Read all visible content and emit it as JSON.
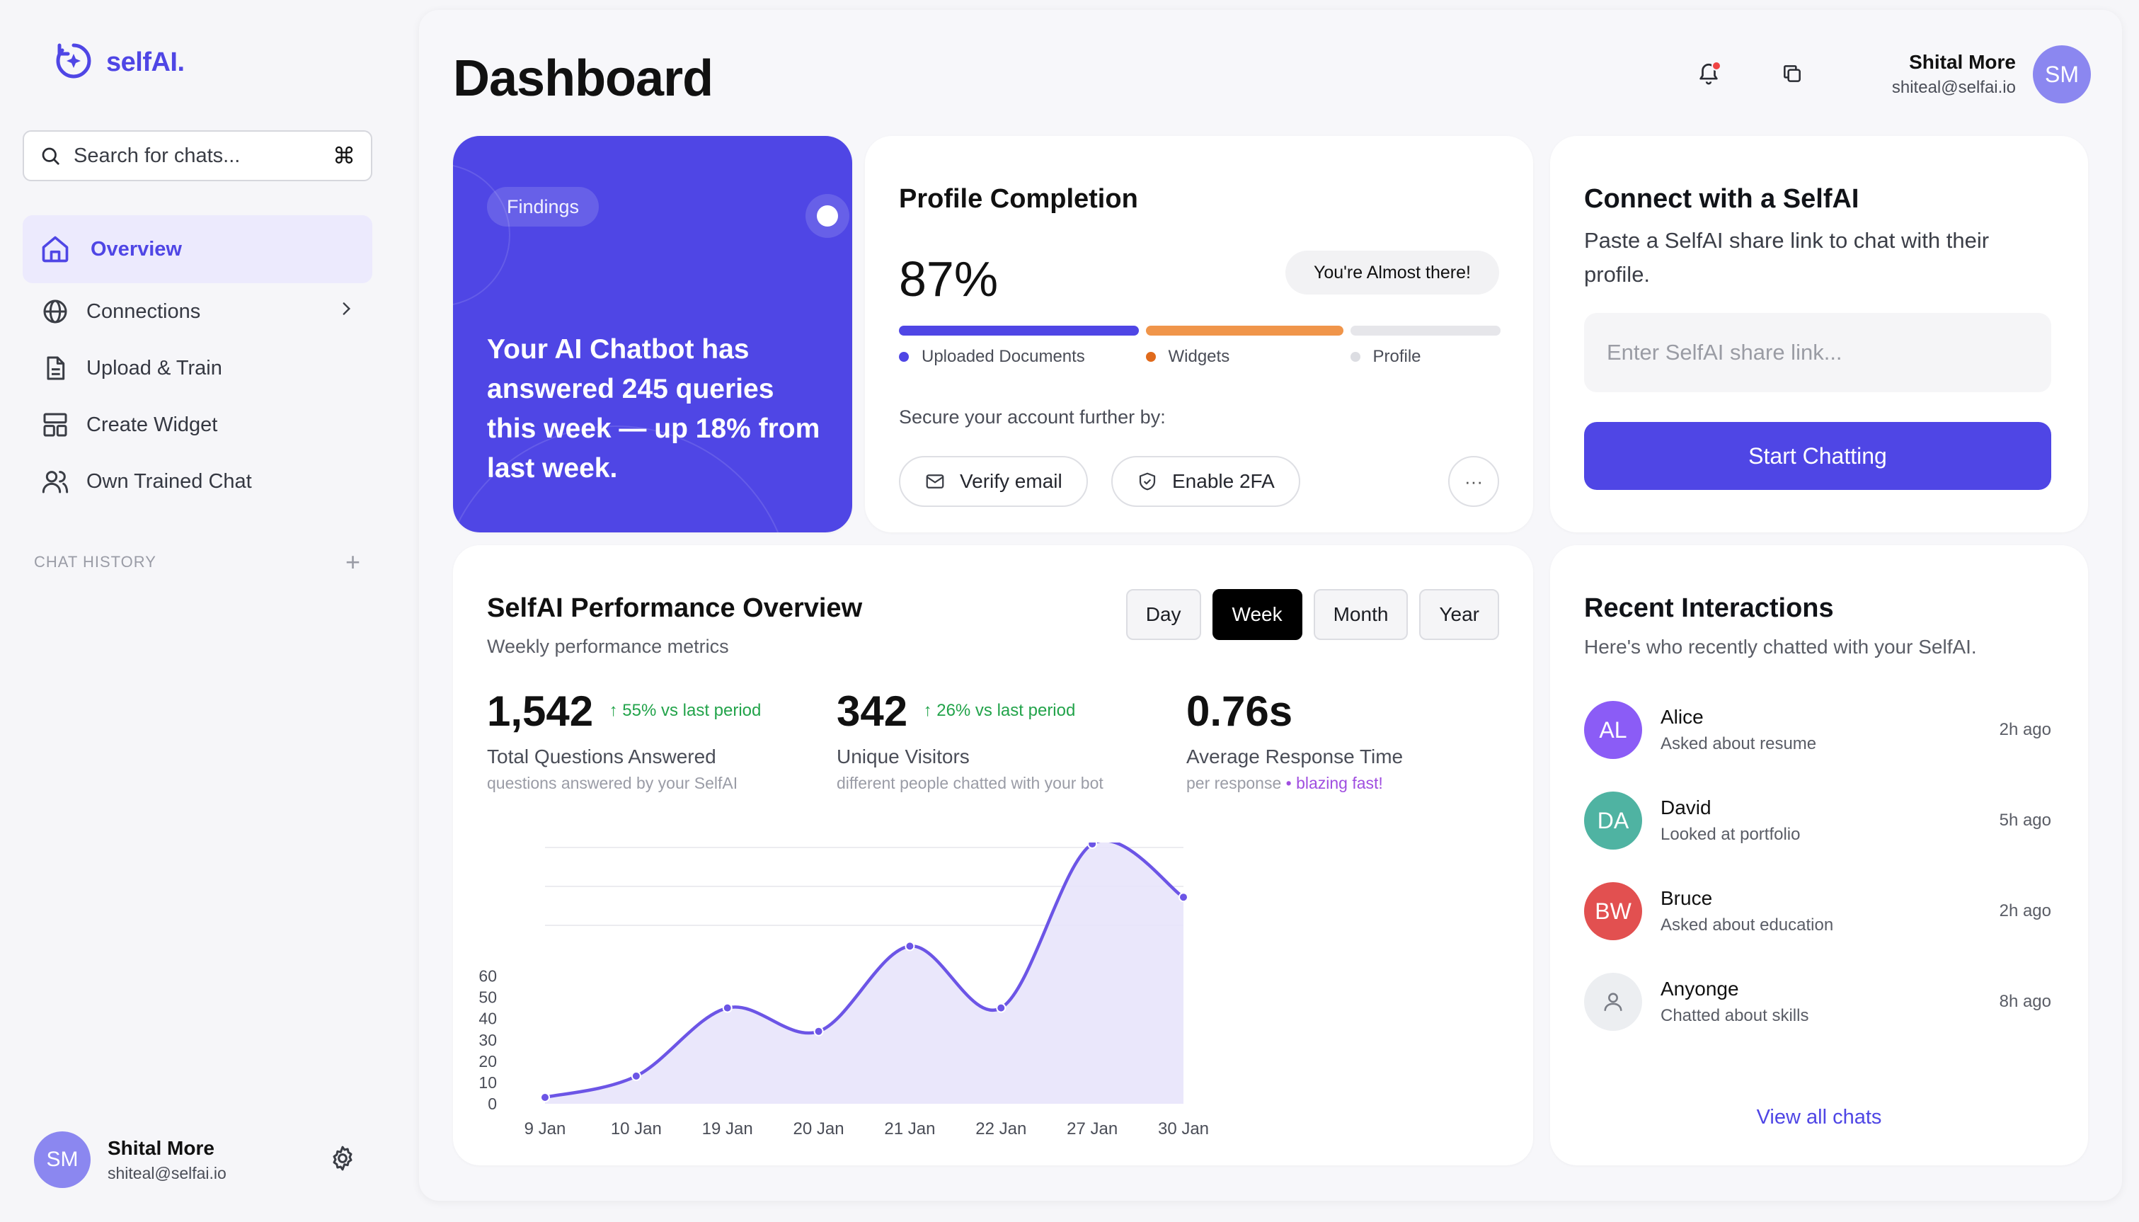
{
  "app": {
    "name": "selfAI."
  },
  "sidebar": {
    "search": {
      "placeholder": "Search for chats...",
      "shortcut": "⌘"
    },
    "items": [
      {
        "label": "Overview",
        "icon": "home-icon",
        "active": true
      },
      {
        "label": "Connections",
        "icon": "globe-icon",
        "has_submenu": true
      },
      {
        "label": "Upload & Train",
        "icon": "file-text-icon"
      },
      {
        "label": "Create Widget",
        "icon": "layout-icon"
      },
      {
        "label": "Own Trained Chat",
        "icon": "users-icon"
      }
    ],
    "history_label": "CHAT HISTORY",
    "user": {
      "initials": "SM",
      "name": "Shital More",
      "email": "shiteal@selfai.io"
    }
  },
  "header": {
    "title": "Dashboard",
    "user": {
      "initials": "SM",
      "name": "Shital More",
      "email": "shiteal@selfai.io"
    }
  },
  "findings": {
    "tag": "Findings",
    "text": "Your AI Chatbot has answered 245 queries this week — up 18% from last week."
  },
  "profile": {
    "title": "Profile Completion",
    "percent": "87%",
    "badge": "You're Almost there!",
    "segments": [
      {
        "label": "Uploaded Documents",
        "color": "#4f46e5",
        "fraction": 0.41
      },
      {
        "label": "Widgets",
        "color": "#f0954a",
        "fraction": 0.34
      },
      {
        "label": "Profile",
        "color": "#e6e6ea",
        "fraction": 0.25
      }
    ],
    "secure_label": "Secure your account further by:",
    "actions": {
      "verify": "Verify email",
      "twofa": "Enable 2FA"
    }
  },
  "connect": {
    "title": "Connect with a SelfAI",
    "description": "Paste a SelfAI share link to chat with their profile.",
    "placeholder": "Enter SelfAI share link...",
    "button": "Start Chatting"
  },
  "performance": {
    "title": "SelfAI Performance Overview",
    "subtitle": "Weekly performance metrics",
    "periods": [
      "Day",
      "Week",
      "Month",
      "Year"
    ],
    "active_period": "Week",
    "metrics": [
      {
        "value": "1,542",
        "trend": "↑ 55% vs last period",
        "label": "Total Questions Answered",
        "hint": "questions answered by your SelfAI"
      },
      {
        "value": "342",
        "trend": "↑ 26% vs last period",
        "label": "Unique Visitors",
        "hint": "different people chatted with your bot"
      },
      {
        "value": "0.76s",
        "label": "Average Response Time",
        "hint": "per response",
        "hint_highlight": "• blazing fast!"
      }
    ]
  },
  "chart_data": {
    "type": "area",
    "categories": [
      "9 Jan",
      "10 Jan",
      "19 Jan",
      "20 Jan",
      "21 Jan",
      "22 Jan",
      "27 Jan",
      "30 Jan"
    ],
    "series": [
      {
        "values": [
          3,
          13,
          45,
          34,
          74,
          45,
          122,
          97
        ]
      }
    ],
    "yticks": [
      0,
      10,
      20,
      30,
      40,
      50,
      60
    ],
    "ylim": [
      0,
      122
    ],
    "grid": true,
    "colors": {
      "line": "#6c55e6",
      "fill": "#e8e4fb"
    }
  },
  "recent": {
    "title": "Recent Interactions",
    "description": "Here's who recently chatted with your SelfAI.",
    "items": [
      {
        "initials": "AL",
        "name": "Alice",
        "action": "Asked about resume",
        "time": "2h ago",
        "color": "#8b5cf6"
      },
      {
        "initials": "DA",
        "name": "David",
        "action": "Looked at portfolio",
        "time": "5h ago",
        "color": "#4fb3a2"
      },
      {
        "initials": "BW",
        "name": "Bruce",
        "action": "Asked about education",
        "time": "2h ago",
        "color": "#e25050"
      },
      {
        "initials": "",
        "name": "Anyonge",
        "action": "Chatted about skills",
        "time": "8h ago",
        "color": "#eceef1"
      }
    ],
    "view_all": "View all chats"
  },
  "colors": {
    "brand": "#4f46e5",
    "trend_up": "#22a34a",
    "highlight": "#a04ee0"
  }
}
